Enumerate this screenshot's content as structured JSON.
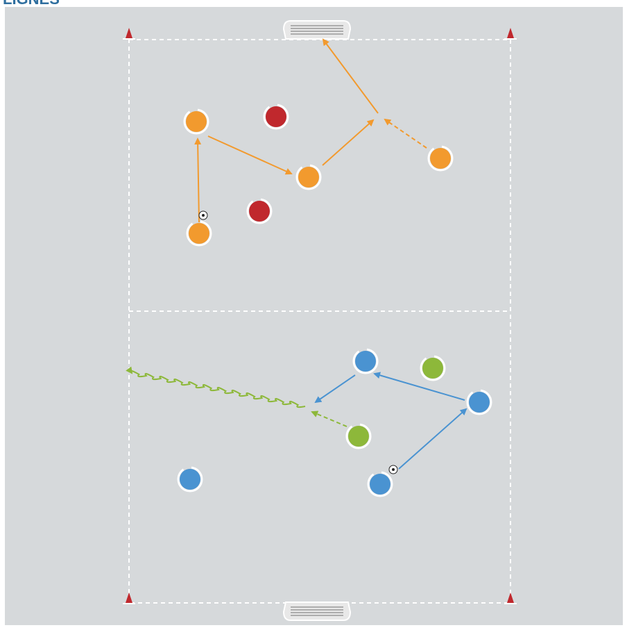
{
  "header": {
    "title": "LIGNES"
  }
}
